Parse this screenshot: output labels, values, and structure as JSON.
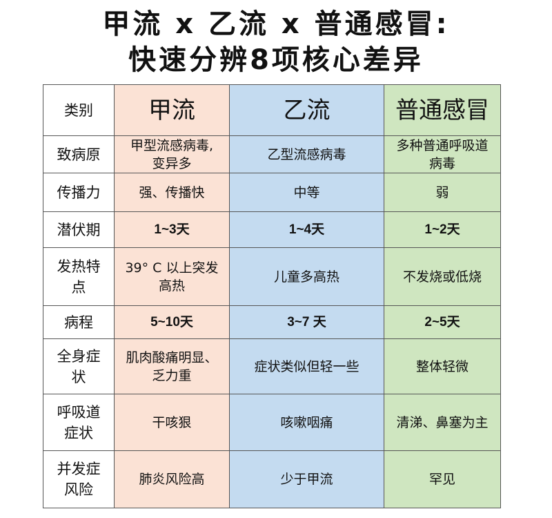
{
  "title": {
    "line1": "甲流 x 乙流 x 普通感冒:",
    "line2": "快速分辨8项核心差异"
  },
  "colors": {
    "flu_a": "#fbe2d5",
    "flu_b": "#c4dbf0",
    "cold": "#cfe6c0"
  },
  "table": {
    "headers": [
      "类别",
      "甲流",
      "乙流",
      "普通感冒"
    ],
    "rows": [
      {
        "label": "致病原",
        "cells": [
          "甲型流感病毒,变异多",
          "乙型流感病毒",
          "多种普通呼吸道病毒"
        ]
      },
      {
        "label": "传播力",
        "cells": [
          "强、传播快",
          "中等",
          "弱"
        ]
      },
      {
        "label": "潜伏期",
        "cells": [
          "1~3天",
          "1~4天",
          "1~2天"
        ]
      },
      {
        "label": "发热特点",
        "cells": [
          "39° C 以上突发高热",
          "儿童多高热",
          "不发烧或低烧"
        ]
      },
      {
        "label": "病程",
        "cells": [
          "5~10天",
          "3~7 天",
          "2~5天"
        ]
      },
      {
        "label": "全身症状",
        "cells": [
          "肌肉酸痛明显、乏力重",
          "症状类似但轻一些",
          "整体轻微"
        ]
      },
      {
        "label": "呼吸道症状",
        "cells": [
          "干咳狠",
          "咳嗽咽痛",
          "清涕、鼻塞为主"
        ]
      },
      {
        "label": "并发症风险",
        "cells": [
          "肺炎风险高",
          "少于甲流",
          "罕见"
        ]
      }
    ]
  }
}
